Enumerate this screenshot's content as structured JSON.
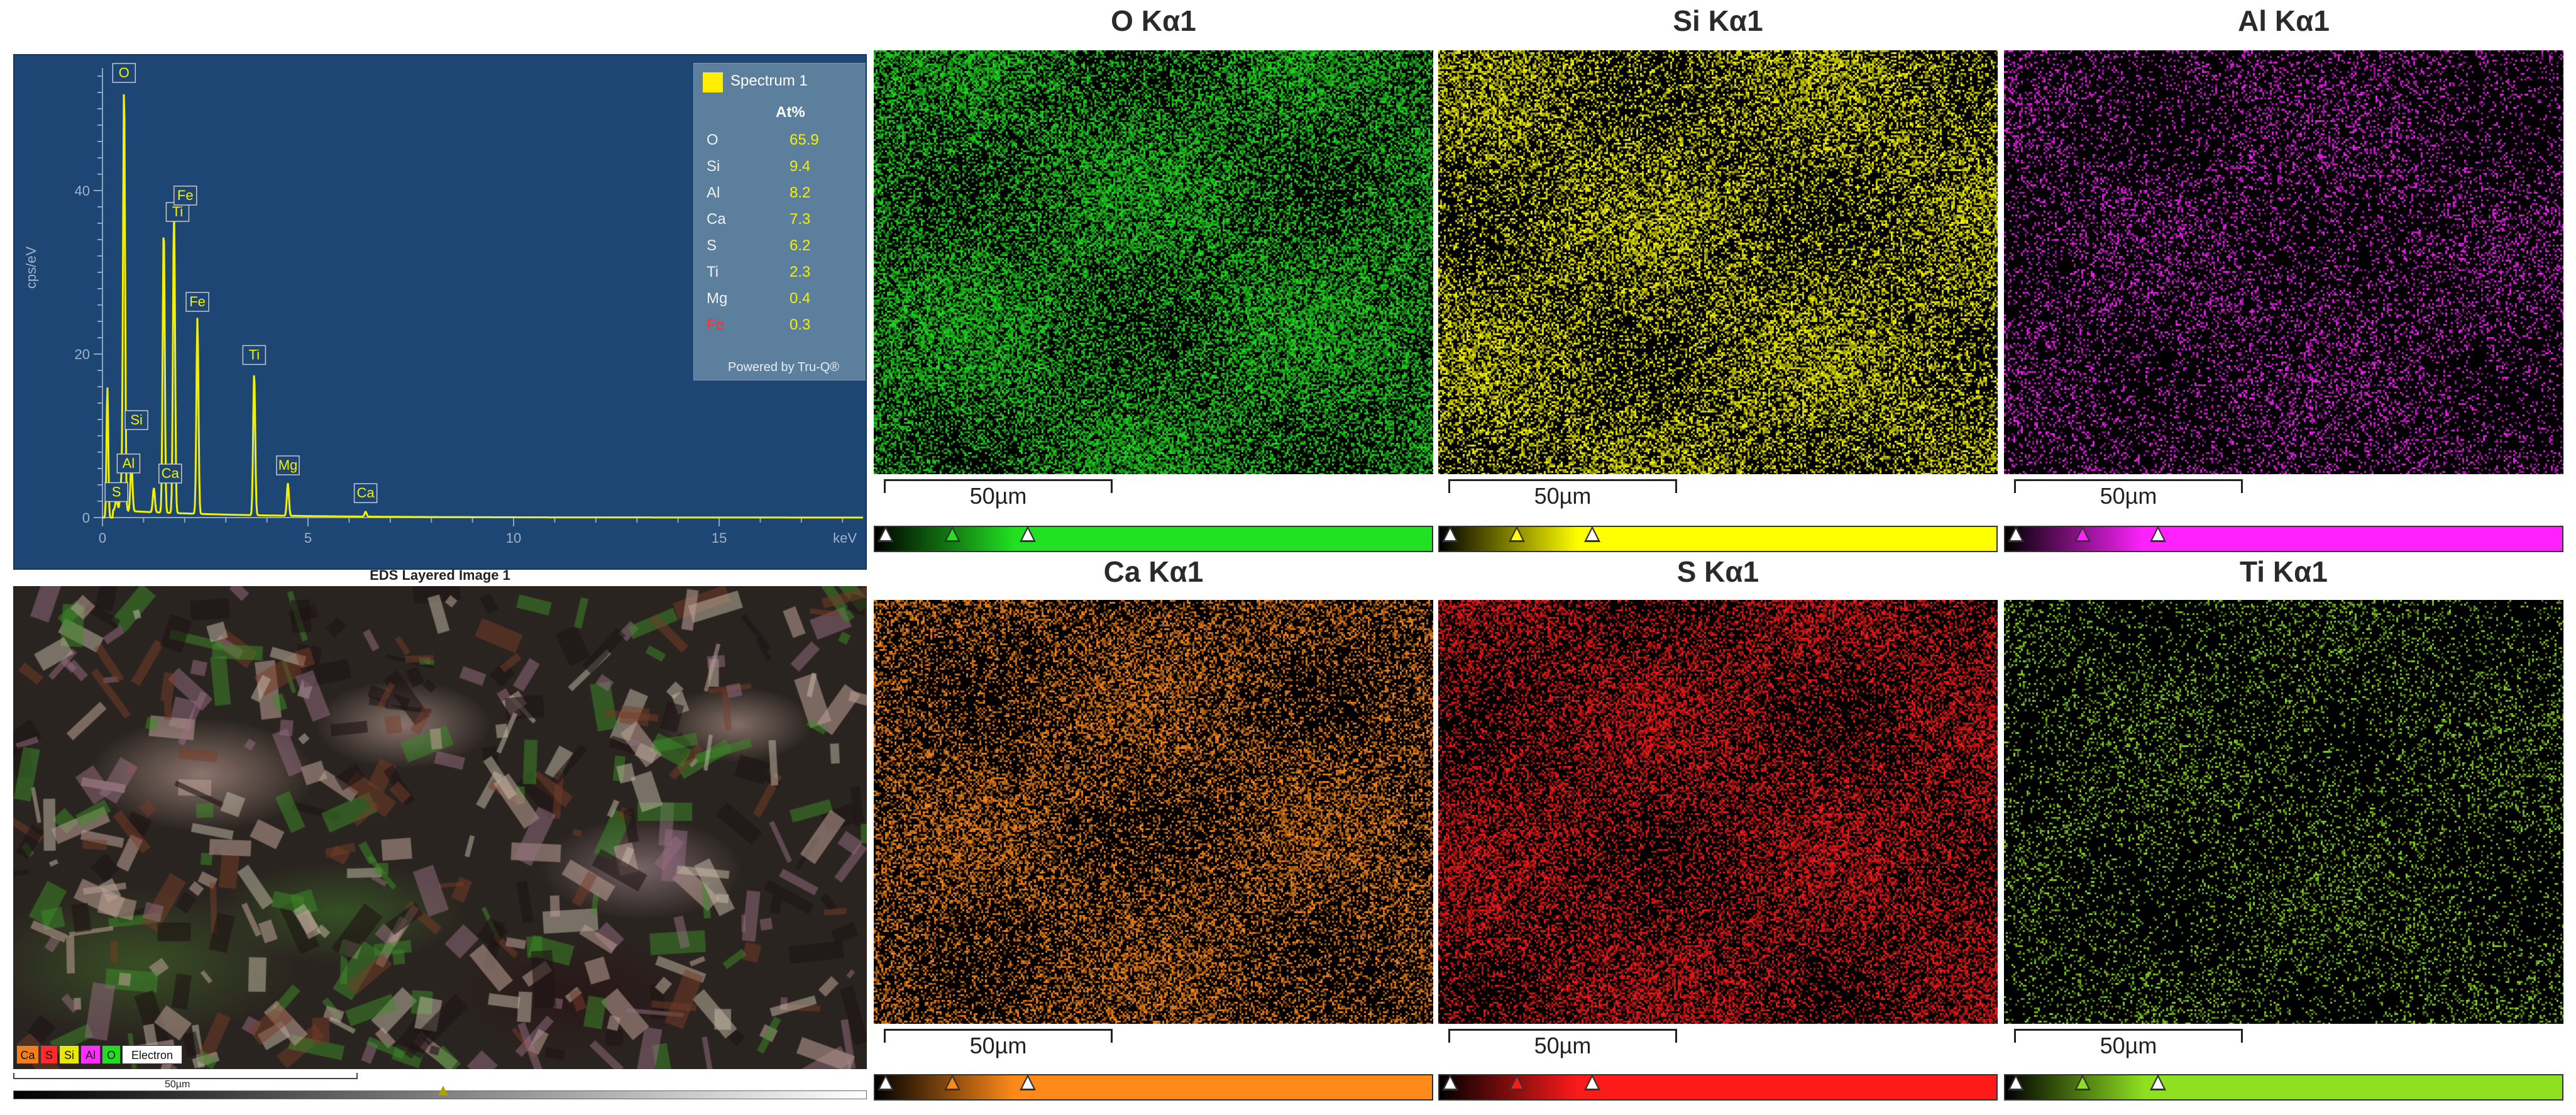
{
  "spectrum": {
    "ylabel": "cps/eV",
    "xunit": "keV",
    "yticks": [
      "0",
      "20",
      "40"
    ],
    "xticks": [
      "0",
      "5",
      "10",
      "15"
    ],
    "peak_labels": [
      "O",
      "Si",
      "Al",
      "S",
      "Ca",
      "Ti",
      "Fe",
      "Fe",
      "Ti",
      "Mg",
      "Ca"
    ],
    "legend": {
      "series_name": "Spectrum 1",
      "header": "At%",
      "rows": [
        {
          "element": "O",
          "value": "65.9"
        },
        {
          "element": "Si",
          "value": "9.4"
        },
        {
          "element": "Al",
          "value": "8.2"
        },
        {
          "element": "Ca",
          "value": "7.3"
        },
        {
          "element": "S",
          "value": "6.2"
        },
        {
          "element": "Ti",
          "value": "2.3"
        },
        {
          "element": "Mg",
          "value": "0.4"
        },
        {
          "element": "Fe",
          "value": "0.3"
        }
      ],
      "footer": "Powered by Tru-Q®"
    }
  },
  "chart_data": {
    "type": "line",
    "title": "",
    "xlabel": "keV",
    "ylabel": "cps/eV",
    "xlim": [
      0,
      18.5
    ],
    "ylim": [
      0,
      55
    ],
    "peaks": [
      {
        "label": "O",
        "x": 0.525,
        "y": 52
      },
      {
        "label": "Fe",
        "x": 0.705,
        "y": 6
      },
      {
        "label": "Ti",
        "x": 0.45,
        "y": 3
      },
      {
        "label": "Ca",
        "x": 0.34,
        "y": 1.5
      },
      {
        "label": "Mg",
        "x": 1.25,
        "y": 3
      },
      {
        "label": "Al",
        "x": 1.49,
        "y": 35
      },
      {
        "label": "Si",
        "x": 1.74,
        "y": 37
      },
      {
        "label": "S",
        "x": 2.31,
        "y": 24
      },
      {
        "label": "Ca",
        "x": 3.69,
        "y": 17.5
      },
      {
        "label": "Ti",
        "x": 4.51,
        "y": 4
      },
      {
        "label": "Fe",
        "x": 6.4,
        "y": 0.6
      }
    ]
  },
  "layered": {
    "title": "EDS Layered Image 1",
    "chips": [
      {
        "label": "Ca",
        "color": "#f07e1a"
      },
      {
        "label": "S",
        "color": "#ff2a2a"
      },
      {
        "label": "Si",
        "color": "#e8e800"
      },
      {
        "label": "Al",
        "color": "#ff30ff"
      },
      {
        "label": "O",
        "color": "#22dd22"
      },
      {
        "label": "Electron",
        "color": "#ffffff"
      }
    ],
    "scale_label": "50µm"
  },
  "maps": [
    {
      "title": "O Kα1",
      "scale_label": "50µm",
      "color": "#22e022",
      "dark": "#0a2a08"
    },
    {
      "title": "Si Kα1",
      "scale_label": "50µm",
      "color": "#ffff00",
      "dark": "#2a2a04"
    },
    {
      "title": "Al Kα1",
      "scale_label": "50µm",
      "color": "#ff22ff",
      "dark": "#220822"
    },
    {
      "title": "Ca Kα1",
      "scale_label": "50µm",
      "color": "#ff8a1a",
      "dark": "#2a1404"
    },
    {
      "title": "S Kα1",
      "scale_label": "50µm",
      "color": "#ff1a1a",
      "dark": "#2a0404"
    },
    {
      "title": "Ti Kα1",
      "scale_label": "50µm",
      "color": "#8ee020",
      "dark": "#0c1a04"
    }
  ]
}
